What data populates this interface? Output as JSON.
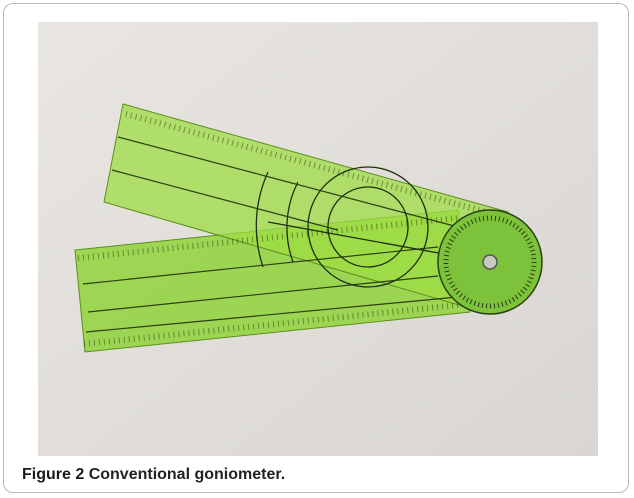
{
  "figure": {
    "label": "Figure 2",
    "caption": "Conventional goniometer."
  }
}
